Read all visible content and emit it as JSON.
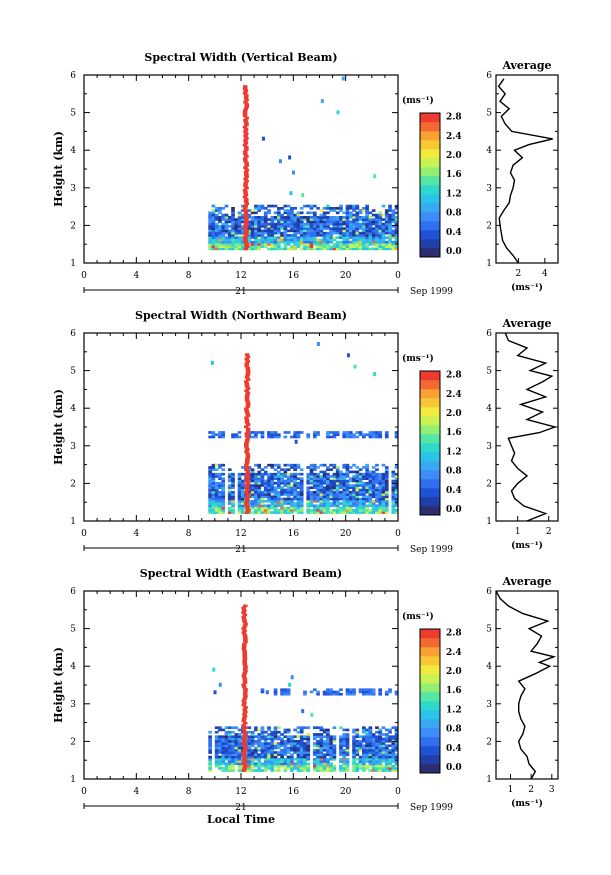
{
  "chart_data": [
    {
      "type": "heatmap",
      "title": "Spectral Width (Vertical Beam)",
      "ylabel": "Height (km)",
      "xlabel": "",
      "x_ticks": [
        "0",
        "4",
        "8",
        "12",
        "16",
        "20",
        "0"
      ],
      "xlim": [
        0,
        24
      ],
      "y_ticks": [
        "1",
        "2",
        "3",
        "4",
        "5",
        "6"
      ],
      "ylim": [
        1,
        6
      ],
      "date_day": "21",
      "date_label": "Sep 1999",
      "colorbar": {
        "unit": "(ms⁻¹)",
        "ticks": [
          "0.0",
          "0.4",
          "0.8",
          "1.2",
          "1.6",
          "2.0",
          "2.4",
          "2.8"
        ],
        "range": [
          0,
          3.0
        ]
      },
      "data_extent": {
        "time_start": 9.5,
        "time_end": 23.8,
        "height_min": 1.35,
        "height_max": 2.5
      },
      "spike": {
        "time": 12.2,
        "width_h": 0.35,
        "height_top": 5.7,
        "value": 3.0
      },
      "layer": null,
      "scattered": [
        [
          15.6,
          3.8
        ],
        [
          15.9,
          3.4
        ],
        [
          14.9,
          3.7
        ],
        [
          13.6,
          4.3
        ],
        [
          18.1,
          5.3
        ],
        [
          19.3,
          5.0
        ],
        [
          22.1,
          3.3
        ],
        [
          19.7,
          5.9
        ],
        [
          16.6,
          2.8
        ],
        [
          15.7,
          2.85
        ]
      ],
      "average_profile": {
        "title": "Average",
        "xlabel": "(ms⁻¹)",
        "x_ticks": [
          "2",
          "4"
        ],
        "xlim": [
          0.3,
          5
        ],
        "ylim": [
          1,
          6
        ],
        "height": [
          1.0,
          1.2,
          1.4,
          1.6,
          1.8,
          2.0,
          2.2,
          2.4,
          2.6,
          2.8,
          3.0,
          3.2,
          3.4,
          3.6,
          3.8,
          4.0,
          4.15,
          4.3,
          4.5,
          4.7,
          4.9,
          5.1,
          5.3,
          5.5,
          5.7,
          5.9
        ],
        "width": [
          2.0,
          1.6,
          1.1,
          0.8,
          0.7,
          0.6,
          0.55,
          0.9,
          1.3,
          1.4,
          1.6,
          1.7,
          1.4,
          1.6,
          2.3,
          1.7,
          2.8,
          4.6,
          1.5,
          1.0,
          0.7,
          1.3,
          0.6,
          1.0,
          0.5,
          0.9
        ]
      }
    },
    {
      "type": "heatmap",
      "title": "Spectral Width (Northward Beam)",
      "ylabel": "Height (km)",
      "xlabel": "",
      "x_ticks": [
        "0",
        "4",
        "8",
        "12",
        "16",
        "20",
        "0"
      ],
      "xlim": [
        0,
        24
      ],
      "y_ticks": [
        "1",
        "2",
        "3",
        "4",
        "5",
        "6"
      ],
      "ylim": [
        1,
        6
      ],
      "date_day": "21",
      "date_label": "Sep 1999",
      "colorbar": {
        "unit": "(ms⁻¹)",
        "ticks": [
          "0.0",
          "0.4",
          "0.8",
          "1.2",
          "1.6",
          "2.0",
          "2.4",
          "2.8"
        ],
        "range": [
          0,
          3.0
        ]
      },
      "data_extent": {
        "time_start": 9.5,
        "time_end": 23.8,
        "height_min": 1.2,
        "height_max": 2.5
      },
      "spike": {
        "time": 12.3,
        "width_h": 0.35,
        "height_top": 5.4,
        "value": 3.0
      },
      "layer": {
        "time_start": 9.5,
        "time_end": 23.8,
        "height": 3.3,
        "thickness": 0.18
      },
      "scattered": [
        [
          9.7,
          5.2
        ],
        [
          17.8,
          5.7
        ],
        [
          20.1,
          5.4
        ],
        [
          22.1,
          4.9
        ],
        [
          20.6,
          5.1
        ],
        [
          16.1,
          3.1
        ],
        [
          18.5,
          3.3
        ]
      ],
      "average_profile": {
        "title": "Average",
        "xlabel": "(ms⁻¹)",
        "x_ticks": [
          "1",
          "2"
        ],
        "xlim": [
          0.3,
          2.3
        ],
        "ylim": [
          1,
          6
        ],
        "height": [
          1.0,
          1.2,
          1.4,
          1.6,
          1.8,
          2.0,
          2.2,
          2.4,
          2.6,
          2.8,
          3.0,
          3.2,
          3.35,
          3.5,
          3.7,
          3.9,
          4.1,
          4.3,
          4.5,
          4.7,
          4.85,
          5.0,
          5.2,
          5.4,
          5.6,
          5.8,
          6.0
        ],
        "width": [
          1.3,
          1.9,
          1.2,
          0.9,
          0.8,
          1.0,
          1.3,
          1.0,
          0.8,
          0.9,
          0.8,
          0.7,
          1.7,
          2.2,
          1.3,
          1.8,
          1.1,
          1.9,
          1.3,
          1.8,
          2.1,
          1.4,
          1.9,
          1.0,
          1.3,
          0.7,
          0.6
        ]
      }
    },
    {
      "type": "heatmap",
      "title": "Spectral Width (Eastward Beam)",
      "ylabel": "Height (km)",
      "xlabel": "Local Time",
      "x_ticks": [
        "0",
        "4",
        "8",
        "12",
        "16",
        "20",
        "0"
      ],
      "xlim": [
        0,
        24
      ],
      "y_ticks": [
        "1",
        "2",
        "3",
        "4",
        "5",
        "6"
      ],
      "ylim": [
        1,
        6
      ],
      "date_day": "21",
      "date_label": "Sep 1999",
      "colorbar": {
        "unit": "(ms⁻¹)",
        "ticks": [
          "0.0",
          "0.4",
          "0.8",
          "1.2",
          "1.6",
          "2.0",
          "2.4",
          "2.8"
        ],
        "range": [
          0,
          3.0
        ]
      },
      "data_extent": {
        "time_start": 9.5,
        "time_end": 23.8,
        "height_min": 1.2,
        "height_max": 2.4
      },
      "spike": {
        "time": 12.1,
        "width_h": 0.35,
        "height_top": 5.6,
        "value": 3.0
      },
      "layer": {
        "time_start": 13.5,
        "time_end": 23.8,
        "height": 3.3,
        "thickness": 0.14
      },
      "scattered": [
        [
          9.8,
          3.9
        ],
        [
          9.9,
          3.3
        ],
        [
          10.3,
          3.5
        ],
        [
          15.8,
          3.7
        ],
        [
          15.6,
          3.5
        ],
        [
          13.9,
          3.3
        ],
        [
          16.6,
          2.8
        ],
        [
          17.3,
          2.7
        ]
      ],
      "average_profile": {
        "title": "Average",
        "xlabel": "(ms⁻¹)",
        "x_ticks": [
          "1",
          "2",
          "3"
        ],
        "xlim": [
          0.3,
          3.3
        ],
        "ylim": [
          1,
          6
        ],
        "height": [
          1.0,
          1.2,
          1.4,
          1.6,
          1.8,
          2.0,
          2.2,
          2.4,
          2.6,
          2.8,
          3.0,
          3.2,
          3.4,
          3.6,
          3.8,
          4.0,
          4.1,
          4.25,
          4.4,
          4.6,
          4.8,
          5.0,
          5.2,
          5.4,
          5.6,
          5.8,
          6.0
        ],
        "width": [
          2.0,
          2.2,
          1.9,
          1.8,
          1.5,
          1.4,
          1.6,
          1.7,
          1.5,
          1.4,
          1.4,
          1.5,
          1.7,
          1.4,
          2.2,
          2.9,
          2.4,
          3.1,
          2.0,
          2.3,
          2.5,
          1.9,
          2.8,
          1.6,
          0.9,
          0.5,
          0.3
        ]
      }
    }
  ]
}
